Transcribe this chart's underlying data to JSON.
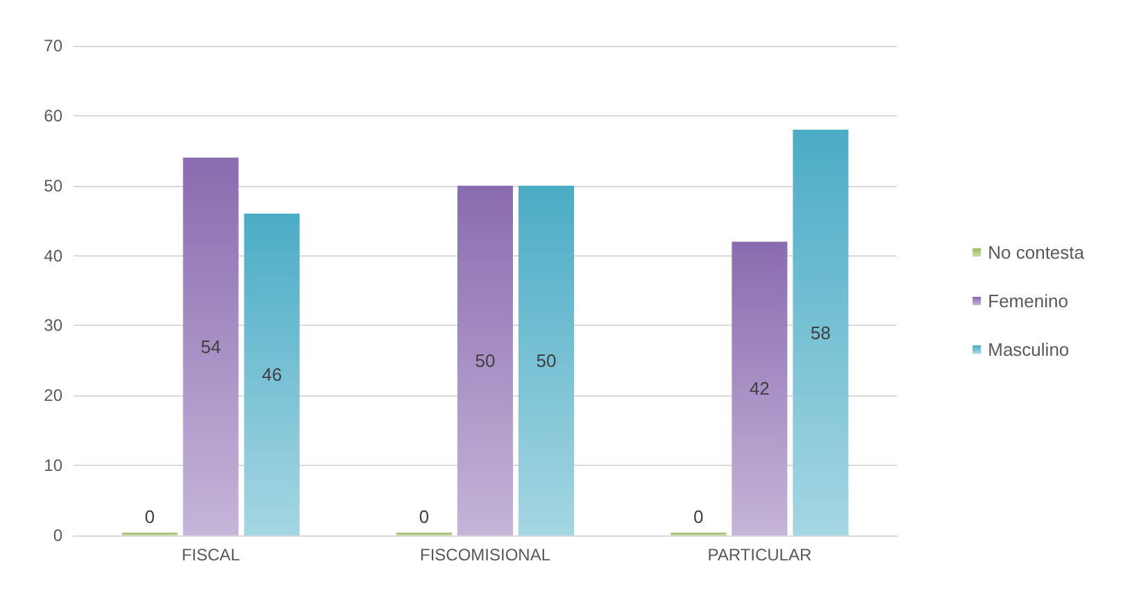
{
  "chart_data": {
    "type": "bar",
    "categories": [
      "FISCAL",
      "FISCOMISIONAL",
      "PARTICULAR"
    ],
    "series": [
      {
        "name": "No contesta",
        "color": "#9bbb59",
        "values": [
          0,
          0,
          0
        ]
      },
      {
        "name": "Femenino",
        "color": "#8a6bb0",
        "values": [
          54,
          50,
          42
        ]
      },
      {
        "name": "Masculino",
        "color": "#4bacc6",
        "values": [
          46,
          50,
          58
        ]
      }
    ],
    "ylim": [
      0,
      70
    ],
    "yticks": [
      0,
      10,
      20,
      30,
      40,
      50,
      60,
      70
    ],
    "grid": "y",
    "legend": "right",
    "data_labels": true
  }
}
